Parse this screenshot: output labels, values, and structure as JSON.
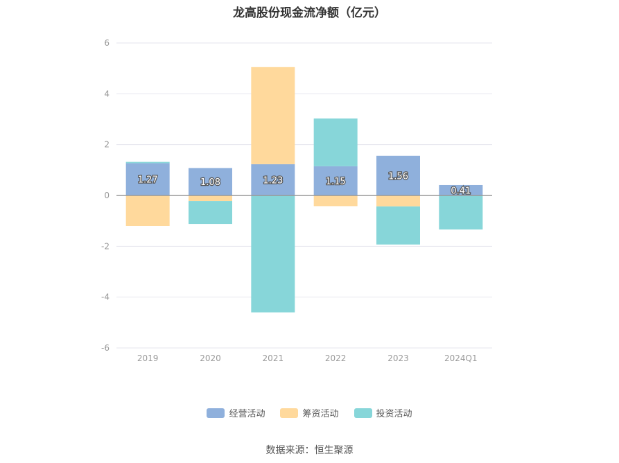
{
  "chart_data": {
    "type": "bar",
    "stacked": true,
    "title": "龙高股份现金流净额（亿元）",
    "categories": [
      "2019",
      "2020",
      "2021",
      "2022",
      "2023",
      "2024Q1"
    ],
    "series": [
      {
        "name": "经营活动",
        "color": "#8fb0dc",
        "values": [
          1.27,
          1.08,
          1.23,
          1.15,
          1.56,
          0.41
        ],
        "labels": [
          "1.27",
          "1.08",
          "1.23",
          "1.15",
          "1.56",
          "0.41"
        ]
      },
      {
        "name": "筹资活动",
        "color": "#ffd99c",
        "values": [
          -1.2,
          -0.22,
          3.82,
          -0.42,
          -0.43,
          0.0
        ]
      },
      {
        "name": "投资活动",
        "color": "#87d6d9",
        "values": [
          0.05,
          -0.9,
          -4.6,
          1.88,
          -1.5,
          -1.34
        ]
      }
    ],
    "yticks": [
      6,
      4,
      2,
      0,
      -2,
      -4,
      -6
    ],
    "ylim": [
      -6,
      6
    ],
    "grid": true,
    "legend": "bottom-center",
    "source": "数据来源：恒生聚源"
  }
}
